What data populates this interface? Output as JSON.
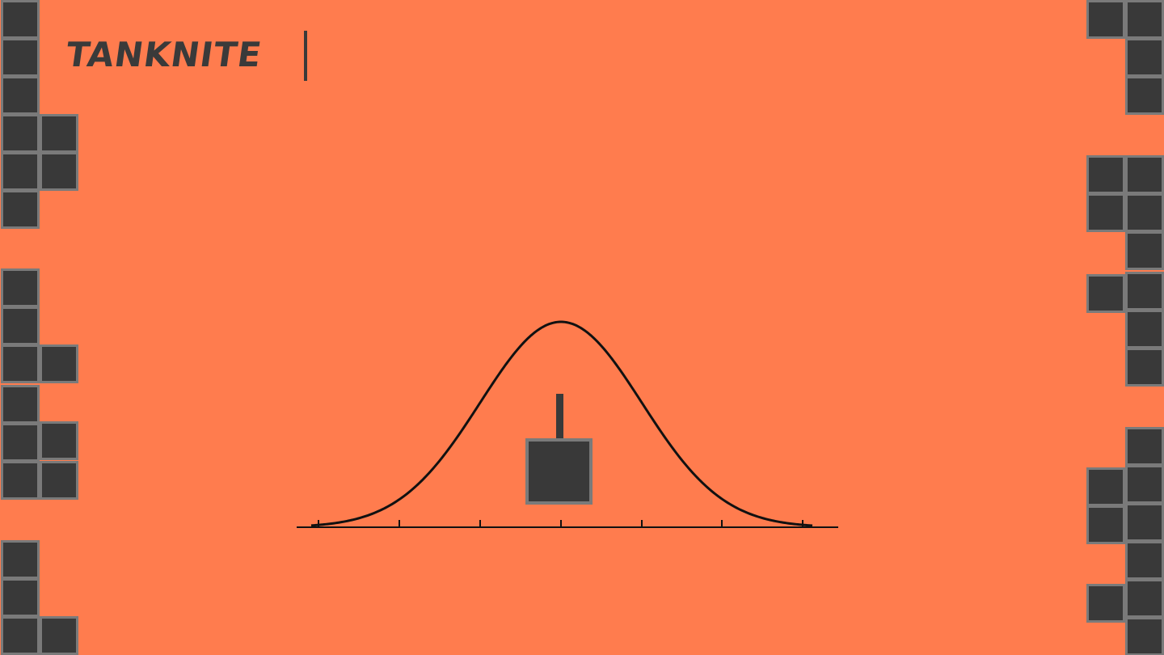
{
  "logo": {
    "text": "TANKNITE"
  },
  "colors": {
    "background": "#FF7C4E",
    "block_fill": "#393939",
    "block_border": "#7A7A7A",
    "curve": "#111111",
    "tank": "#393939"
  },
  "scene": {
    "curve_shape": "bell",
    "axis_tick_count": 7,
    "tank_icon": "tank-icon"
  }
}
